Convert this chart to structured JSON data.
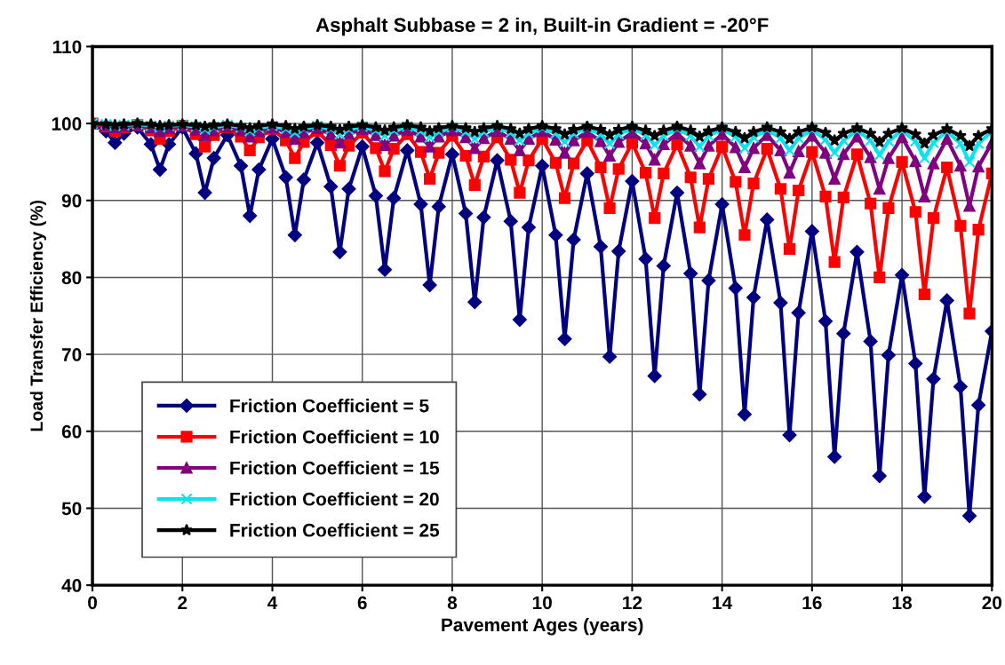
{
  "chart_data": {
    "type": "line",
    "title": "Asphalt Subbase = 2 in, Built-in Gradient = -20°F",
    "xlabel": "Pavement Ages (years)",
    "ylabel": "Load Transfer Efficiency (%)",
    "x": [
      0,
      0.3,
      0.5,
      0.7,
      1,
      1.3,
      1.5,
      1.7,
      2,
      2.3,
      2.5,
      2.7,
      3,
      3.3,
      3.5,
      3.7,
      4,
      4.3,
      4.5,
      4.7,
      5,
      5.3,
      5.5,
      5.7,
      6,
      6.3,
      6.5,
      6.7,
      7,
      7.3,
      7.5,
      7.7,
      8,
      8.3,
      8.5,
      8.7,
      9,
      9.3,
      9.5,
      9.7,
      10,
      10.3,
      10.5,
      10.7,
      11,
      11.3,
      11.5,
      11.7,
      12,
      12.3,
      12.5,
      12.7,
      13,
      13.3,
      13.5,
      13.7,
      14,
      14.3,
      14.5,
      14.7,
      15,
      15.3,
      15.5,
      15.7,
      16,
      16.3,
      16.5,
      16.7,
      17,
      17.3,
      17.5,
      17.7,
      18,
      18.3,
      18.5,
      18.7,
      19,
      19.3,
      19.5,
      19.7,
      20
    ],
    "series": [
      {
        "name": "Friction Coefficient = 5",
        "color": "#000080",
        "marker": "diamond",
        "values": [
          100,
          99.0,
          97.5,
          98.7,
          99.5,
          97.3,
          94,
          97.3,
          99.5,
          96.1,
          91,
          95.5,
          98.5,
          94.5,
          88,
          94.0,
          98,
          93.0,
          85.5,
          92.7,
          97.5,
          91.8,
          83.3,
          91.5,
          97,
          90.6,
          81,
          90.3,
          96.5,
          89.5,
          79,
          89.2,
          96,
          88.3,
          76.8,
          87.8,
          95.2,
          87.3,
          74.5,
          86.5,
          94.5,
          85.5,
          72,
          84.9,
          93.5,
          84.0,
          69.7,
          83.4,
          92.5,
          82.4,
          67.2,
          81.5,
          91,
          80.5,
          64.8,
          79.6,
          89.5,
          78.6,
          62.2,
          77.4,
          87.5,
          76.7,
          59.5,
          75.4,
          86,
          74.3,
          56.7,
          72.7,
          83.3,
          71.7,
          54.2,
          69.9,
          80.3,
          68.8,
          51.5,
          66.8,
          77,
          65.8,
          49,
          63.4,
          73
        ]
      },
      {
        "name": "Friction Coefficient = 10",
        "color": "#ff0000",
        "marker": "square",
        "values": [
          100,
          99.6,
          99,
          99.5,
          99.8,
          99.1,
          98,
          99.0,
          99.7,
          98.6,
          97,
          98.5,
          99.5,
          98.3,
          96.5,
          98.2,
          99.3,
          97.8,
          95.5,
          97.6,
          99,
          97.2,
          94.5,
          97.1,
          98.8,
          96.8,
          93.8,
          96.7,
          98.6,
          96.3,
          92.8,
          96.2,
          98.4,
          95.8,
          92,
          95.7,
          98.2,
          95.3,
          91,
          95.2,
          98,
          94.9,
          90.3,
          94.8,
          97.8,
          94.3,
          89,
          94.1,
          97.5,
          93.6,
          87.7,
          93.5,
          97.3,
          93.0,
          86.5,
          92.8,
          97,
          92.4,
          85.5,
          92.2,
          96.7,
          91.5,
          83.7,
          91.3,
          96.3,
          90.5,
          82,
          90.4,
          96,
          89.6,
          80,
          89.0,
          95,
          88.5,
          77.8,
          87.7,
          94.3,
          86.7,
          75.3,
          86.2,
          93.5
        ]
      },
      {
        "name": "Friction Coefficient = 15",
        "color": "#800080",
        "marker": "triangle",
        "values": [
          100,
          99.8,
          99.5,
          99.7,
          99.8,
          99.5,
          99,
          99.4,
          99.7,
          99.2,
          98.5,
          99.1,
          99.6,
          99.1,
          98.3,
          99.0,
          99.5,
          98.9,
          98,
          98.8,
          99.4,
          98.6,
          97.5,
          98.6,
          99.3,
          98.5,
          97.2,
          98.4,
          99.2,
          98.3,
          97,
          98.3,
          99.1,
          98.2,
          96.8,
          98.1,
          99,
          98.0,
          96.5,
          98.0,
          99,
          97.9,
          96.2,
          97.8,
          98.9,
          97.7,
          95.8,
          97.6,
          98.8,
          97.4,
          95.3,
          97.3,
          98.7,
          97.1,
          94.8,
          97.1,
          98.6,
          96.9,
          94.3,
          96.8,
          98.5,
          96.5,
          93.6,
          96.4,
          98.4,
          96.2,
          92.8,
          96.0,
          98.3,
          95.6,
          91.5,
          95.5,
          98.2,
          95.1,
          90.5,
          94.8,
          98,
          94.5,
          89.3,
          94.4,
          97.5
        ]
      },
      {
        "name": "Friction Coefficient = 20",
        "color": "#00e5ee",
        "marker": "cross",
        "values": [
          100,
          99.9,
          99.7,
          99.8,
          99.9,
          99.7,
          99.5,
          99.7,
          99.8,
          99.6,
          99.2,
          99.5,
          99.8,
          99.5,
          99,
          99.4,
          99.7,
          99.3,
          98.8,
          99.3,
          99.7,
          99.3,
          98.6,
          99.2,
          99.6,
          99.1,
          98.4,
          99.1,
          99.6,
          99.0,
          98.2,
          98.9,
          99.5,
          98.9,
          98,
          98.9,
          99.5,
          98.8,
          97.8,
          98.7,
          99.4,
          98.7,
          97.6,
          98.7,
          99.4,
          98.6,
          97.4,
          98.6,
          99.4,
          98.5,
          97.2,
          98.4,
          99.3,
          98.4,
          97,
          98.4,
          99.3,
          98.3,
          96.8,
          98.2,
          99.2,
          98.1,
          96.5,
          98.1,
          99.2,
          97.9,
          96.2,
          97.8,
          99.1,
          97.8,
          95.9,
          97.7,
          99.1,
          97.7,
          95.5,
          97.5,
          99,
          97.4,
          95,
          97.4,
          99
        ]
      },
      {
        "name": "Friction Coefficient = 25",
        "color": "#000000",
        "marker": "star",
        "values": [
          100,
          99.9,
          99.8,
          99.9,
          100,
          99.9,
          99.7,
          99.8,
          99.9,
          99.8,
          99.6,
          99.8,
          99.9,
          99.7,
          99.4,
          99.7,
          99.9,
          99.7,
          99.3,
          99.6,
          99.8,
          99.6,
          99.2,
          99.6,
          99.8,
          99.5,
          99.1,
          99.5,
          99.8,
          99.5,
          99,
          99.4,
          99.7,
          99.4,
          98.9,
          99.4,
          99.7,
          99.3,
          98.7,
          99.3,
          99.7,
          99.3,
          98.6,
          99.2,
          99.6,
          99.2,
          98.5,
          99.2,
          99.6,
          99.1,
          98.4,
          99.1,
          99.6,
          99.1,
          98.3,
          99.0,
          99.5,
          98.9,
          98.1,
          98.9,
          99.5,
          98.9,
          98,
          98.9,
          99.5,
          98.8,
          97.8,
          98.7,
          99.4,
          98.7,
          97.6,
          98.7,
          99.4,
          98.6,
          97.4,
          98.5,
          99.3,
          98.4,
          97.1,
          98.4,
          99.3
        ]
      }
    ],
    "xlim": [
      0,
      20
    ],
    "xticks": [
      0,
      2,
      4,
      6,
      8,
      10,
      12,
      14,
      16,
      18,
      20
    ],
    "ylim": [
      40,
      110
    ],
    "yticks": [
      40,
      50,
      60,
      70,
      80,
      90,
      100,
      110
    ],
    "grid": true,
    "legend": "bottom left",
    "line_style": "solid"
  }
}
